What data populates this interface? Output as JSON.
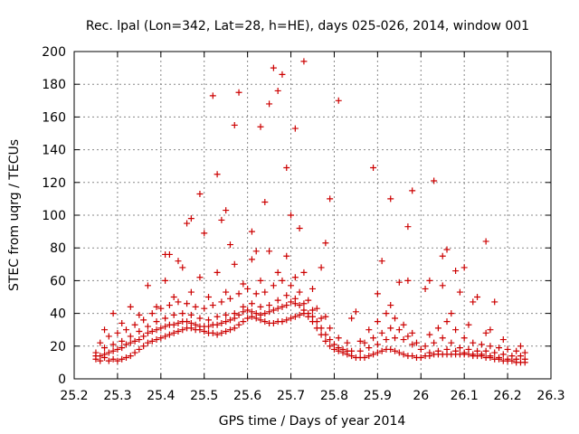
{
  "chart_data": {
    "type": "scatter",
    "title": "Rec. lpal (Lon=342, Lat=28, h=HE), days 025-026, 2014, window 001",
    "xlabel": "GPS time / Days of year 2014",
    "ylabel": "STEC from uqrg / TECUs",
    "xlim": [
      25.2,
      26.3
    ],
    "ylim": [
      0,
      200
    ],
    "x_ticks": [
      "25.2",
      "25.3",
      "25.4",
      "25.5",
      "25.6",
      "25.7",
      "25.8",
      "25.9",
      "26",
      "26.1",
      "26.2",
      "26.3"
    ],
    "y_ticks": [
      "0",
      "20",
      "40",
      "60",
      "80",
      "100",
      "120",
      "140",
      "160",
      "180",
      "200"
    ],
    "grid": true,
    "marker": "+",
    "series_color": "#cc0000",
    "points": [
      [
        25.25,
        12
      ],
      [
        25.26,
        11
      ],
      [
        25.27,
        13
      ],
      [
        25.28,
        11
      ],
      [
        25.29,
        12
      ],
      [
        25.3,
        11
      ],
      [
        25.31,
        12
      ],
      [
        25.32,
        13
      ],
      [
        25.33,
        14
      ],
      [
        25.34,
        16
      ],
      [
        25.35,
        18
      ],
      [
        25.36,
        20
      ],
      [
        25.37,
        22
      ],
      [
        25.38,
        23
      ],
      [
        25.39,
        24
      ],
      [
        25.4,
        25
      ],
      [
        25.41,
        26
      ],
      [
        25.42,
        27
      ],
      [
        25.43,
        28
      ],
      [
        25.44,
        29
      ],
      [
        25.45,
        30
      ],
      [
        25.46,
        31
      ],
      [
        25.47,
        31
      ],
      [
        25.48,
        30
      ],
      [
        25.49,
        30
      ],
      [
        25.5,
        29
      ],
      [
        25.51,
        28
      ],
      [
        25.52,
        28
      ],
      [
        25.53,
        27
      ],
      [
        25.54,
        28
      ],
      [
        25.55,
        29
      ],
      [
        25.56,
        30
      ],
      [
        25.57,
        31
      ],
      [
        25.58,
        33
      ],
      [
        25.59,
        35
      ],
      [
        25.6,
        37
      ],
      [
        25.61,
        38
      ],
      [
        25.62,
        37
      ],
      [
        25.63,
        36
      ],
      [
        25.64,
        35
      ],
      [
        25.65,
        34
      ],
      [
        25.66,
        34
      ],
      [
        25.67,
        35
      ],
      [
        25.68,
        35
      ],
      [
        25.69,
        36
      ],
      [
        25.7,
        37
      ],
      [
        25.71,
        38
      ],
      [
        25.72,
        39
      ],
      [
        25.73,
        40
      ],
      [
        25.74,
        38
      ],
      [
        25.75,
        35
      ],
      [
        25.76,
        31
      ],
      [
        25.77,
        27
      ],
      [
        25.78,
        23
      ],
      [
        25.79,
        20
      ],
      [
        25.8,
        18
      ],
      [
        25.81,
        17
      ],
      [
        25.82,
        16
      ],
      [
        25.83,
        15
      ],
      [
        25.84,
        14
      ],
      [
        25.85,
        13
      ],
      [
        25.86,
        13
      ],
      [
        25.87,
        13
      ],
      [
        25.88,
        14
      ],
      [
        25.89,
        15
      ],
      [
        25.9,
        16
      ],
      [
        25.91,
        17
      ],
      [
        25.92,
        18
      ],
      [
        25.93,
        18
      ],
      [
        25.94,
        17
      ],
      [
        25.95,
        16
      ],
      [
        25.96,
        15
      ],
      [
        25.97,
        14
      ],
      [
        25.98,
        14
      ],
      [
        25.99,
        13
      ],
      [
        26.0,
        13
      ],
      [
        26.01,
        14
      ],
      [
        26.02,
        14
      ],
      [
        26.03,
        15
      ],
      [
        26.04,
        15
      ],
      [
        26.05,
        15
      ],
      [
        26.06,
        15
      ],
      [
        26.07,
        15
      ],
      [
        26.08,
        15
      ],
      [
        26.09,
        15
      ],
      [
        26.1,
        15
      ],
      [
        26.11,
        15
      ],
      [
        26.12,
        14
      ],
      [
        26.13,
        14
      ],
      [
        26.14,
        14
      ],
      [
        26.15,
        13
      ],
      [
        26.16,
        13
      ],
      [
        26.17,
        12
      ],
      [
        26.18,
        12
      ],
      [
        26.19,
        11
      ],
      [
        26.2,
        11
      ],
      [
        26.21,
        11
      ],
      [
        26.22,
        10
      ],
      [
        26.23,
        10
      ],
      [
        26.24,
        10
      ],
      [
        25.25,
        14
      ],
      [
        25.26,
        14
      ],
      [
        25.27,
        15
      ],
      [
        25.28,
        16
      ],
      [
        25.29,
        17
      ],
      [
        25.3,
        18
      ],
      [
        25.31,
        19
      ],
      [
        25.32,
        21
      ],
      [
        25.33,
        22
      ],
      [
        25.34,
        23
      ],
      [
        25.35,
        24
      ],
      [
        25.36,
        26
      ],
      [
        25.37,
        28
      ],
      [
        25.38,
        29
      ],
      [
        25.39,
        30
      ],
      [
        25.4,
        31
      ],
      [
        25.41,
        32
      ],
      [
        25.42,
        33
      ],
      [
        25.43,
        33
      ],
      [
        25.44,
        34
      ],
      [
        25.45,
        35
      ],
      [
        25.46,
        35
      ],
      [
        25.47,
        34
      ],
      [
        25.48,
        33
      ],
      [
        25.49,
        32
      ],
      [
        25.5,
        32
      ],
      [
        25.51,
        32
      ],
      [
        25.52,
        33
      ],
      [
        25.53,
        33
      ],
      [
        25.54,
        34
      ],
      [
        25.55,
        35
      ],
      [
        25.56,
        36
      ],
      [
        25.57,
        37
      ],
      [
        25.58,
        39
      ],
      [
        25.59,
        41
      ],
      [
        25.6,
        42
      ],
      [
        25.61,
        41
      ],
      [
        25.62,
        40
      ],
      [
        25.63,
        39
      ],
      [
        25.64,
        40
      ],
      [
        25.65,
        41
      ],
      [
        25.66,
        42
      ],
      [
        25.67,
        43
      ],
      [
        25.68,
        44
      ],
      [
        25.69,
        45
      ],
      [
        25.7,
        47
      ],
      [
        25.71,
        46
      ],
      [
        25.72,
        45
      ],
      [
        25.73,
        42
      ],
      [
        25.74,
        40
      ],
      [
        25.75,
        38
      ],
      [
        25.76,
        35
      ],
      [
        25.77,
        31
      ],
      [
        25.78,
        27
      ],
      [
        25.79,
        24
      ],
      [
        25.8,
        21
      ],
      [
        25.81,
        19
      ],
      [
        25.82,
        18
      ],
      [
        25.83,
        17
      ],
      [
        25.84,
        17
      ],
      [
        25.86,
        17
      ],
      [
        25.88,
        19
      ],
      [
        25.9,
        21
      ],
      [
        25.92,
        24
      ],
      [
        25.94,
        25
      ],
      [
        25.96,
        24
      ],
      [
        25.98,
        21
      ],
      [
        26.0,
        18
      ],
      [
        26.02,
        16
      ],
      [
        26.04,
        17
      ],
      [
        26.06,
        18
      ],
      [
        26.08,
        17
      ],
      [
        26.1,
        16
      ],
      [
        26.12,
        15
      ],
      [
        26.14,
        15
      ],
      [
        26.16,
        14
      ],
      [
        26.18,
        13
      ],
      [
        26.2,
        12
      ],
      [
        26.22,
        12
      ],
      [
        26.24,
        12
      ],
      [
        25.25,
        16
      ],
      [
        25.27,
        19
      ],
      [
        25.29,
        21
      ],
      [
        25.31,
        23
      ],
      [
        25.33,
        26
      ],
      [
        25.35,
        29
      ],
      [
        25.37,
        32
      ],
      [
        25.39,
        35
      ],
      [
        25.41,
        37
      ],
      [
        25.43,
        39
      ],
      [
        25.45,
        40
      ],
      [
        25.47,
        39
      ],
      [
        25.49,
        37
      ],
      [
        25.51,
        36
      ],
      [
        25.53,
        38
      ],
      [
        25.55,
        39
      ],
      [
        25.57,
        40
      ],
      [
        25.59,
        44
      ],
      [
        25.61,
        46
      ],
      [
        25.63,
        44
      ],
      [
        25.65,
        45
      ],
      [
        25.67,
        48
      ],
      [
        25.69,
        51
      ],
      [
        25.71,
        49
      ],
      [
        25.73,
        46
      ],
      [
        25.75,
        42
      ],
      [
        25.77,
        37
      ],
      [
        25.79,
        31
      ],
      [
        25.81,
        25
      ],
      [
        25.83,
        22
      ],
      [
        25.87,
        22
      ],
      [
        25.89,
        25
      ],
      [
        25.91,
        28
      ],
      [
        25.93,
        31
      ],
      [
        25.95,
        30
      ],
      [
        25.97,
        26
      ],
      [
        25.99,
        22
      ],
      [
        26.01,
        20
      ],
      [
        26.03,
        22
      ],
      [
        26.05,
        25
      ],
      [
        26.07,
        22
      ],
      [
        26.09,
        19
      ],
      [
        26.11,
        18
      ],
      [
        26.13,
        17
      ],
      [
        26.15,
        17
      ],
      [
        26.17,
        16
      ],
      [
        26.19,
        15
      ],
      [
        26.21,
        14
      ],
      [
        26.23,
        14
      ],
      [
        25.26,
        22
      ],
      [
        25.28,
        26
      ],
      [
        25.3,
        28
      ],
      [
        25.32,
        30
      ],
      [
        25.34,
        33
      ],
      [
        25.36,
        36
      ],
      [
        25.38,
        40
      ],
      [
        25.4,
        43
      ],
      [
        25.42,
        45
      ],
      [
        25.44,
        47
      ],
      [
        25.46,
        46
      ],
      [
        25.48,
        44
      ],
      [
        25.5,
        43
      ],
      [
        25.52,
        45
      ],
      [
        25.54,
        47
      ],
      [
        25.56,
        49
      ],
      [
        25.58,
        52
      ],
      [
        25.6,
        55
      ],
      [
        25.62,
        52
      ],
      [
        25.64,
        53
      ],
      [
        25.66,
        57
      ],
      [
        25.68,
        60
      ],
      [
        25.7,
        57
      ],
      [
        25.72,
        53
      ],
      [
        25.74,
        48
      ],
      [
        25.76,
        43
      ],
      [
        25.78,
        38
      ],
      [
        25.88,
        30
      ],
      [
        25.9,
        35
      ],
      [
        25.92,
        40
      ],
      [
        25.94,
        37
      ],
      [
        25.96,
        33
      ],
      [
        25.98,
        28
      ],
      [
        26.02,
        27
      ],
      [
        26.04,
        31
      ],
      [
        26.06,
        35
      ],
      [
        26.08,
        30
      ],
      [
        26.1,
        25
      ],
      [
        26.12,
        22
      ],
      [
        26.14,
        21
      ],
      [
        26.16,
        20
      ],
      [
        26.18,
        19
      ],
      [
        26.2,
        18
      ],
      [
        26.22,
        17
      ],
      [
        26.24,
        16
      ],
      [
        25.27,
        30
      ],
      [
        25.31,
        34
      ],
      [
        25.35,
        39
      ],
      [
        25.39,
        44
      ],
      [
        25.43,
        50
      ],
      [
        25.47,
        53
      ],
      [
        25.51,
        50
      ],
      [
        25.55,
        53
      ],
      [
        25.59,
        58
      ],
      [
        25.63,
        60
      ],
      [
        25.67,
        65
      ],
      [
        25.71,
        62
      ],
      [
        25.75,
        55
      ],
      [
        25.93,
        45
      ],
      [
        26.07,
        40
      ],
      [
        26.11,
        33
      ],
      [
        26.15,
        28
      ],
      [
        26.19,
        24
      ],
      [
        26.23,
        20
      ],
      [
        25.29,
        40
      ],
      [
        25.33,
        44
      ],
      [
        25.37,
        57
      ],
      [
        25.41,
        60
      ],
      [
        25.45,
        68
      ],
      [
        25.49,
        62
      ],
      [
        25.53,
        65
      ],
      [
        25.57,
        70
      ],
      [
        25.61,
        73
      ],
      [
        25.65,
        78
      ],
      [
        25.69,
        75
      ],
      [
        25.73,
        65
      ],
      [
        25.97,
        60
      ],
      [
        26.01,
        55
      ],
      [
        26.05,
        57
      ],
      [
        26.09,
        53
      ],
      [
        26.13,
        50
      ],
      [
        26.17,
        47
      ],
      [
        25.41,
        76
      ],
      [
        25.42,
        76
      ],
      [
        25.44,
        72
      ],
      [
        25.47,
        98
      ],
      [
        25.49,
        113
      ],
      [
        25.5,
        89
      ],
      [
        25.52,
        173
      ],
      [
        25.53,
        125
      ],
      [
        25.54,
        97
      ],
      [
        25.55,
        103
      ],
      [
        25.56,
        82
      ],
      [
        25.57,
        155
      ],
      [
        25.58,
        175
      ],
      [
        25.62,
        78
      ],
      [
        25.63,
        154
      ],
      [
        25.64,
        108
      ],
      [
        25.65,
        168
      ],
      [
        25.66,
        190
      ],
      [
        25.67,
        176
      ],
      [
        25.68,
        186
      ],
      [
        25.69,
        129
      ],
      [
        25.7,
        100
      ],
      [
        25.71,
        153
      ],
      [
        25.72,
        92
      ],
      [
        25.73,
        194
      ],
      [
        25.78,
        83
      ],
      [
        25.79,
        110
      ],
      [
        25.81,
        170
      ],
      [
        25.89,
        129
      ],
      [
        25.91,
        72
      ],
      [
        25.93,
        110
      ],
      [
        25.97,
        93
      ],
      [
        25.98,
        115
      ],
      [
        26.03,
        121
      ],
      [
        26.06,
        79
      ],
      [
        26.05,
        75
      ],
      [
        26.1,
        68
      ],
      [
        26.15,
        84
      ],
      [
        25.46,
        95
      ],
      [
        25.61,
        90
      ],
      [
        25.77,
        68
      ],
      [
        25.86,
        23
      ],
      [
        25.85,
        41
      ],
      [
        25.84,
        37
      ],
      [
        25.9,
        52
      ],
      [
        25.95,
        59
      ],
      [
        26.02,
        60
      ],
      [
        26.08,
        66
      ],
      [
        26.12,
        47
      ],
      [
        26.16,
        30
      ]
    ]
  }
}
